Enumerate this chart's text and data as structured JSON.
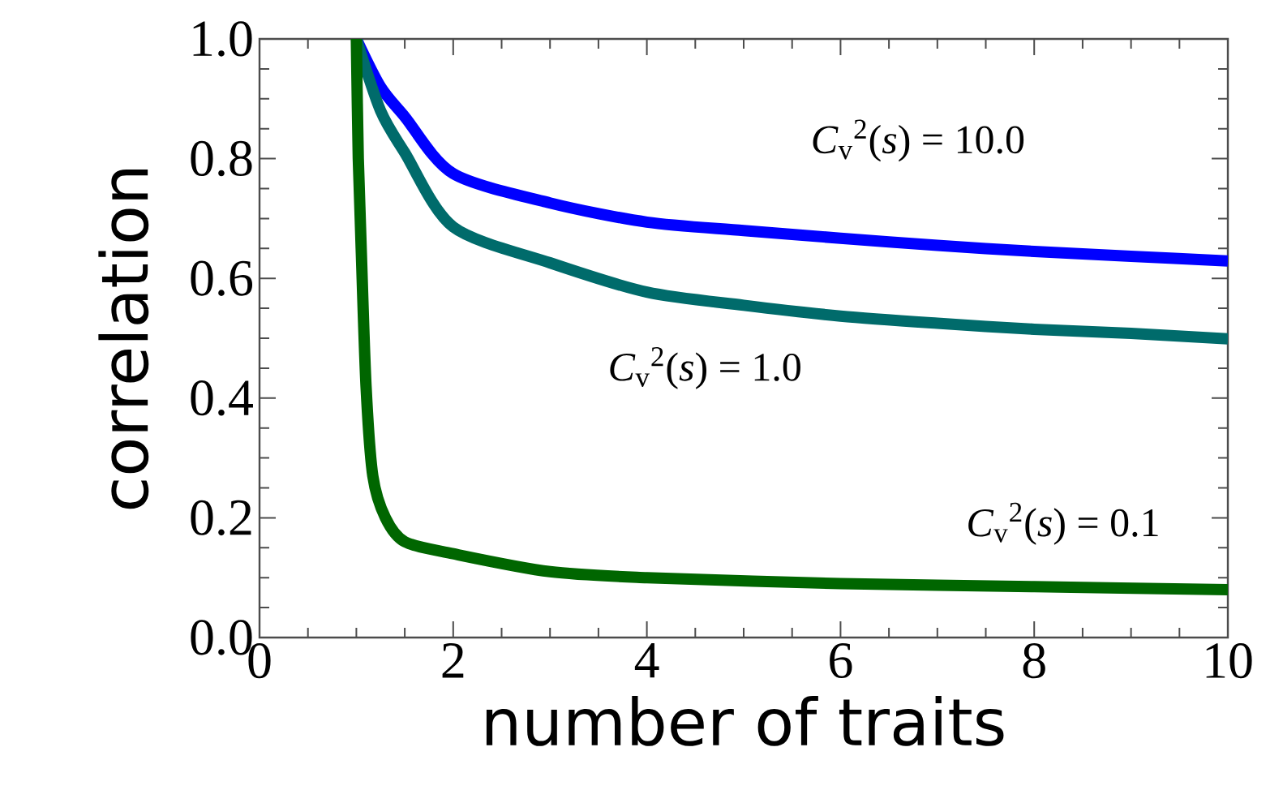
{
  "chart_data": {
    "type": "line",
    "xlabel": "number of traits",
    "ylabel": "correlation",
    "xlim": [
      0,
      10
    ],
    "ylim": [
      0,
      1
    ],
    "xticks": [
      0,
      2,
      4,
      6,
      8,
      10
    ],
    "yticks": [
      {
        "value": 0,
        "label": "0.0"
      },
      {
        "value": 0.2,
        "label": "0.2"
      },
      {
        "value": 0.4,
        "label": "0.4"
      },
      {
        "value": 0.6,
        "label": "0.6"
      },
      {
        "value": 0.8,
        "label": "0.8"
      },
      {
        "value": 1,
        "label": "1.0"
      }
    ],
    "grid": false,
    "legend": false,
    "marker": "none",
    "line_style": "solid",
    "series": [
      {
        "name": "*C*$_{v}$$^{2}$(*s*) = 10.0",
        "color": "#0000ff",
        "x": [
          1,
          1.25,
          1.5,
          2,
          3,
          4,
          5,
          6,
          7,
          8,
          9,
          10
        ],
        "values": [
          1.0,
          0.92,
          0.87,
          0.775,
          0.726,
          0.694,
          0.68,
          0.667,
          0.655,
          0.645,
          0.637,
          0.629
        ]
      },
      {
        "name": "*C*$_{v}$$^{2}$(*s*) = 1.0",
        "color": "#006b6b",
        "x": [
          1,
          1.25,
          1.5,
          2,
          3,
          4,
          5,
          6,
          7,
          8,
          9,
          10
        ],
        "values": [
          1.0,
          0.88,
          0.81,
          0.686,
          0.626,
          0.577,
          0.555,
          0.537,
          0.525,
          0.515,
          0.508,
          0.499
        ]
      },
      {
        "name": "*C*$_{v}$$^{2}$(*s*) = 0.1",
        "color": "#006600",
        "x": [
          1,
          1.02,
          1.05,
          1.1,
          1.17,
          1.3,
          1.5,
          2,
          3,
          4,
          6,
          8,
          10
        ],
        "values": [
          1.0,
          0.8,
          0.65,
          0.42,
          0.27,
          0.2,
          0.16,
          0.14,
          0.11,
          0.1,
          0.09,
          0.085,
          0.08
        ]
      }
    ]
  }
}
